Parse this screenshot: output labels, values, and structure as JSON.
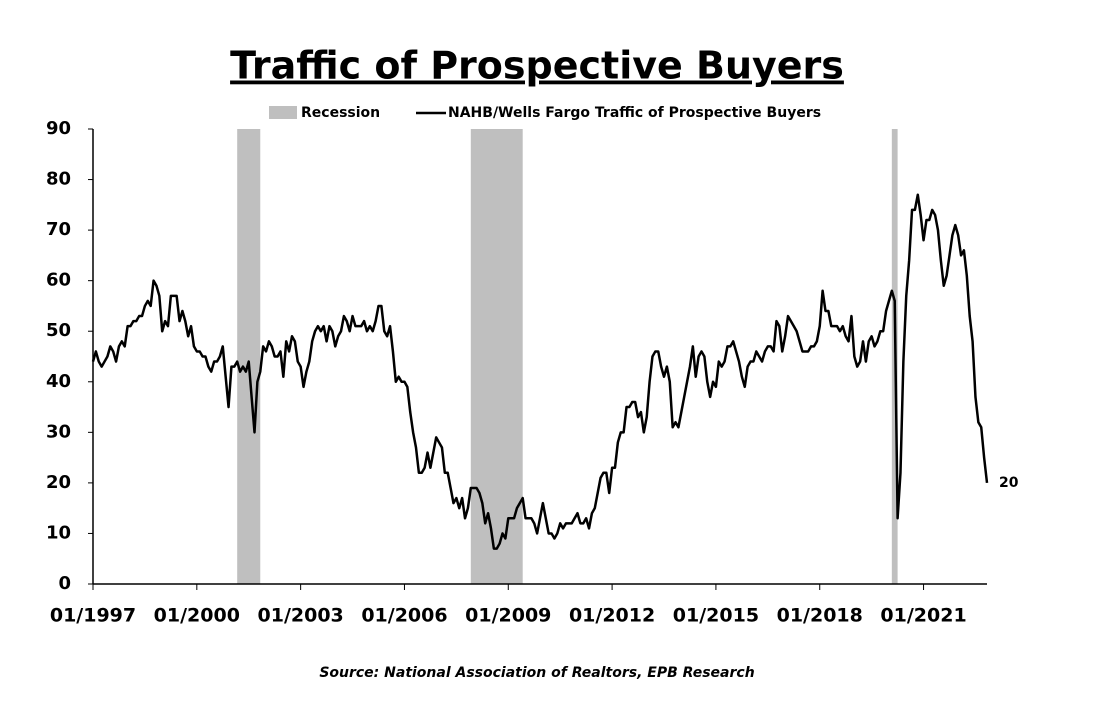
{
  "chart_data": {
    "type": "line",
    "title": "Traffic of Prospective Buyers",
    "source": "Source: National Association of Realtors, EPB Research",
    "recession_label": "Recession",
    "recession_color": "#bfbfbf",
    "recessions": [
      {
        "start": "2001-03",
        "end": "2001-11"
      },
      {
        "start": "2007-12",
        "end": "2009-06"
      },
      {
        "start": "2020-02",
        "end": "2020-04"
      }
    ],
    "x": [
      "1997-01",
      "1997-02",
      "1997-03",
      "1997-04",
      "1997-05",
      "1997-06",
      "1997-07",
      "1997-08",
      "1997-09",
      "1997-10",
      "1997-11",
      "1997-12",
      "1998-01",
      "1998-02",
      "1998-03",
      "1998-04",
      "1998-05",
      "1998-06",
      "1998-07",
      "1998-08",
      "1998-09",
      "1998-10",
      "1998-11",
      "1998-12",
      "1999-01",
      "1999-02",
      "1999-03",
      "1999-04",
      "1999-05",
      "1999-06",
      "1999-07",
      "1999-08",
      "1999-09",
      "1999-10",
      "1999-11",
      "1999-12",
      "2000-01",
      "2000-02",
      "2000-03",
      "2000-04",
      "2000-05",
      "2000-06",
      "2000-07",
      "2000-08",
      "2000-09",
      "2000-10",
      "2000-11",
      "2000-12",
      "2001-01",
      "2001-02",
      "2001-03",
      "2001-04",
      "2001-05",
      "2001-06",
      "2001-07",
      "2001-08",
      "2001-09",
      "2001-10",
      "2001-11",
      "2001-12",
      "2002-01",
      "2002-02",
      "2002-03",
      "2002-04",
      "2002-05",
      "2002-06",
      "2002-07",
      "2002-08",
      "2002-09",
      "2002-10",
      "2002-11",
      "2002-12",
      "2003-01",
      "2003-02",
      "2003-03",
      "2003-04",
      "2003-05",
      "2003-06",
      "2003-07",
      "2003-08",
      "2003-09",
      "2003-10",
      "2003-11",
      "2003-12",
      "2004-01",
      "2004-02",
      "2004-03",
      "2004-04",
      "2004-05",
      "2004-06",
      "2004-07",
      "2004-08",
      "2004-09",
      "2004-10",
      "2004-11",
      "2004-12",
      "2005-01",
      "2005-02",
      "2005-03",
      "2005-04",
      "2005-05",
      "2005-06",
      "2005-07",
      "2005-08",
      "2005-09",
      "2005-10",
      "2005-11",
      "2005-12",
      "2006-01",
      "2006-02",
      "2006-03",
      "2006-04",
      "2006-05",
      "2006-06",
      "2006-07",
      "2006-08",
      "2006-09",
      "2006-10",
      "2006-11",
      "2006-12",
      "2007-01",
      "2007-02",
      "2007-03",
      "2007-04",
      "2007-05",
      "2007-06",
      "2007-07",
      "2007-08",
      "2007-09",
      "2007-10",
      "2007-11",
      "2007-12",
      "2008-01",
      "2008-02",
      "2008-03",
      "2008-04",
      "2008-05",
      "2008-06",
      "2008-07",
      "2008-08",
      "2008-09",
      "2008-10",
      "2008-11",
      "2008-12",
      "2009-01",
      "2009-02",
      "2009-03",
      "2009-04",
      "2009-05",
      "2009-06",
      "2009-07",
      "2009-08",
      "2009-09",
      "2009-10",
      "2009-11",
      "2009-12",
      "2010-01",
      "2010-02",
      "2010-03",
      "2010-04",
      "2010-05",
      "2010-06",
      "2010-07",
      "2010-08",
      "2010-09",
      "2010-10",
      "2010-11",
      "2010-12",
      "2011-01",
      "2011-02",
      "2011-03",
      "2011-04",
      "2011-05",
      "2011-06",
      "2011-07",
      "2011-08",
      "2011-09",
      "2011-10",
      "2011-11",
      "2011-12",
      "2012-01",
      "2012-02",
      "2012-03",
      "2012-04",
      "2012-05",
      "2012-06",
      "2012-07",
      "2012-08",
      "2012-09",
      "2012-10",
      "2012-11",
      "2012-12",
      "2013-01",
      "2013-02",
      "2013-03",
      "2013-04",
      "2013-05",
      "2013-06",
      "2013-07",
      "2013-08",
      "2013-09",
      "2013-10",
      "2013-11",
      "2013-12",
      "2014-01",
      "2014-02",
      "2014-03",
      "2014-04",
      "2014-05",
      "2014-06",
      "2014-07",
      "2014-08",
      "2014-09",
      "2014-10",
      "2014-11",
      "2014-12",
      "2015-01",
      "2015-02",
      "2015-03",
      "2015-04",
      "2015-05",
      "2015-06",
      "2015-07",
      "2015-08",
      "2015-09",
      "2015-10",
      "2015-11",
      "2015-12",
      "2016-01",
      "2016-02",
      "2016-03",
      "2016-04",
      "2016-05",
      "2016-06",
      "2016-07",
      "2016-08",
      "2016-09",
      "2016-10",
      "2016-11",
      "2016-12",
      "2017-01",
      "2017-02",
      "2017-03",
      "2017-04",
      "2017-05",
      "2017-06",
      "2017-07",
      "2017-08",
      "2017-09",
      "2017-10",
      "2017-11",
      "2017-12",
      "2018-01",
      "2018-02",
      "2018-03",
      "2018-04",
      "2018-05",
      "2018-06",
      "2018-07",
      "2018-08",
      "2018-09",
      "2018-10",
      "2018-11",
      "2018-12",
      "2019-01",
      "2019-02",
      "2019-03",
      "2019-04",
      "2019-05",
      "2019-06",
      "2019-07",
      "2019-08",
      "2019-09",
      "2019-10",
      "2019-11",
      "2019-12",
      "2020-01",
      "2020-02",
      "2020-03",
      "2020-04",
      "2020-05",
      "2020-06",
      "2020-07",
      "2020-08",
      "2020-09",
      "2020-10",
      "2020-11",
      "2020-12",
      "2021-01",
      "2021-02",
      "2021-03",
      "2021-04",
      "2021-05",
      "2021-06",
      "2021-07",
      "2021-08",
      "2021-09",
      "2021-10",
      "2021-11",
      "2021-12",
      "2022-01",
      "2022-02",
      "2022-03",
      "2022-04",
      "2022-05",
      "2022-06",
      "2022-07",
      "2022-08",
      "2022-09",
      "2022-10",
      "2022-11"
    ],
    "series": [
      {
        "name": "NAHB/Wells Fargo Traffic of Prospective Buyers",
        "color": "#000000",
        "values": [
          44,
          46,
          44,
          43,
          44,
          45,
          47,
          46,
          44,
          47,
          48,
          47,
          51,
          51,
          52,
          52,
          53,
          53,
          55,
          56,
          55,
          60,
          59,
          57,
          50,
          52,
          51,
          57,
          57,
          57,
          52,
          54,
          52,
          49,
          51,
          47,
          46,
          46,
          45,
          45,
          43,
          42,
          44,
          44,
          45,
          47,
          41,
          35,
          43,
          43,
          44,
          42,
          43,
          42,
          44,
          37,
          30,
          40,
          42,
          47,
          46,
          48,
          47,
          45,
          45,
          46,
          41,
          48,
          46,
          49,
          48,
          44,
          43,
          39,
          42,
          44,
          48,
          50,
          51,
          50,
          51,
          48,
          51,
          50,
          47,
          49,
          50,
          53,
          52,
          50,
          53,
          51,
          51,
          51,
          52,
          50,
          51,
          50,
          52,
          55,
          55,
          50,
          49,
          51,
          46,
          40,
          41,
          40,
          40,
          39,
          34,
          30,
          27,
          22,
          22,
          23,
          26,
          23,
          26,
          29,
          28,
          27,
          22,
          22,
          19,
          16,
          17,
          15,
          17,
          13,
          15,
          19,
          19,
          19,
          18,
          16,
          12,
          14,
          11,
          7,
          7,
          8,
          10,
          9,
          13,
          13,
          13,
          15,
          16,
          17,
          13,
          13,
          13,
          12,
          10,
          13,
          16,
          13,
          10,
          10,
          9,
          10,
          12,
          11,
          12,
          12,
          12,
          13,
          14,
          12,
          12,
          13,
          11,
          14,
          15,
          18,
          21,
          22,
          22,
          18,
          23,
          23,
          28,
          30,
          30,
          35,
          35,
          36,
          36,
          33,
          34,
          30,
          33,
          40,
          45,
          46,
          46,
          43,
          41,
          43,
          40,
          31,
          32,
          31,
          34,
          37,
          40,
          43,
          47,
          41,
          45,
          46,
          45,
          40,
          37,
          40,
          39,
          44,
          43,
          44,
          47,
          47,
          48,
          46,
          44,
          41,
          39,
          43,
          44,
          44,
          46,
          45,
          44,
          46,
          47,
          47,
          46,
          52,
          51,
          46,
          49,
          53,
          52,
          51,
          50,
          48,
          46,
          46,
          46,
          47,
          47,
          48,
          51,
          58,
          54,
          54,
          51,
          51,
          51,
          50,
          51,
          49,
          48,
          53,
          45,
          43,
          44,
          48,
          44,
          48,
          49,
          47,
          48,
          50,
          50,
          54,
          56,
          58,
          56,
          13,
          22,
          44,
          57,
          64,
          74,
          74,
          77,
          73,
          68,
          72,
          72,
          74,
          73,
          70,
          64,
          59,
          61,
          65,
          69,
          71,
          69,
          65,
          66,
          61,
          53,
          48,
          37,
          32,
          31,
          25,
          20
        ]
      }
    ],
    "xlim": [
      "1997-01",
      "2022-11"
    ],
    "xticks": [
      {
        "value": "1997-01",
        "label": "01/1997"
      },
      {
        "value": "2000-01",
        "label": "01/2000"
      },
      {
        "value": "2003-01",
        "label": "01/2003"
      },
      {
        "value": "2006-01",
        "label": "01/2006"
      },
      {
        "value": "2009-01",
        "label": "01/2009"
      },
      {
        "value": "2012-01",
        "label": "01/2012"
      },
      {
        "value": "2015-01",
        "label": "01/2015"
      },
      {
        "value": "2018-01",
        "label": "01/2018"
      },
      {
        "value": "2021-01",
        "label": "01/2021"
      }
    ],
    "ylim": [
      0,
      90
    ],
    "yticks": [
      0,
      10,
      20,
      30,
      40,
      50,
      60,
      70,
      80,
      90
    ],
    "grid": false
  }
}
